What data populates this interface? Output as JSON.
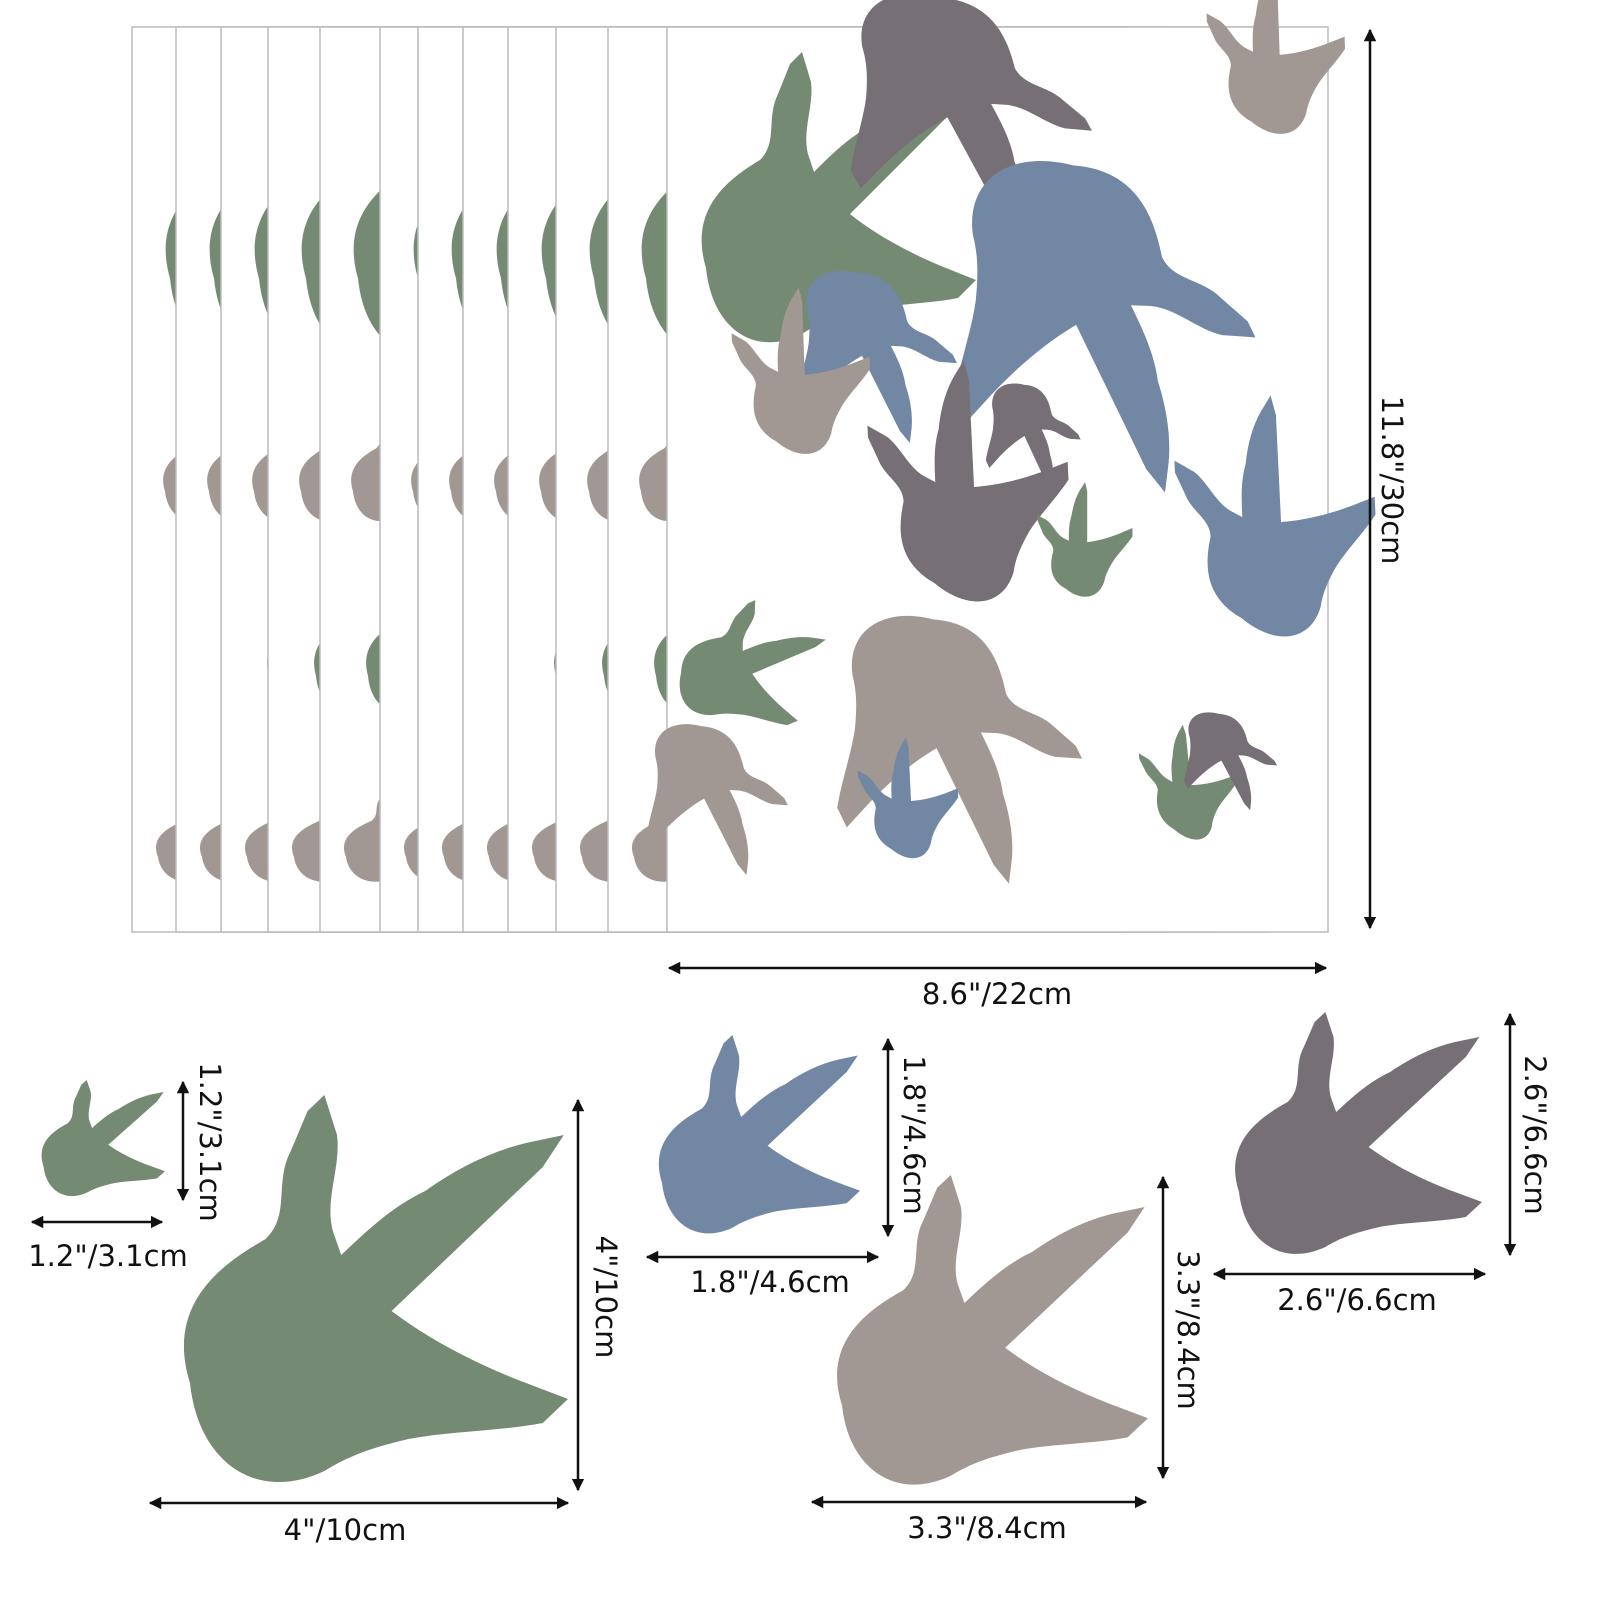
{
  "sheet": {
    "height_label": "11.8\"/30cm",
    "width_label": "8.6\"/22cm"
  },
  "items": [
    {
      "width_label": "1.2\"/3.1cm",
      "height_label": "1.2\"/3.1cm"
    },
    {
      "width_label": "4\"/10cm",
      "height_label": "4\"/10cm"
    },
    {
      "width_label": "1.8\"/4.6cm",
      "height_label": "1.8\"/4.6cm"
    },
    {
      "width_label": "3.3\"/8.4cm",
      "height_label": "3.3\"/8.4cm"
    },
    {
      "width_label": "2.6\"/6.6cm",
      "height_label": "2.6\"/6.6cm"
    }
  ]
}
